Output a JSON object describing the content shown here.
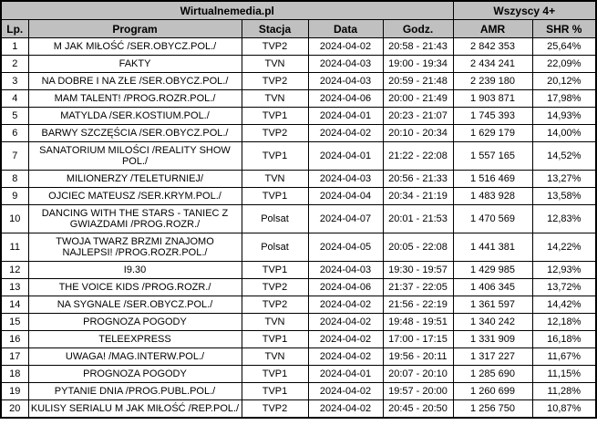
{
  "colors": {
    "header_bg": "#c0c0c0",
    "border": "#000000",
    "text": "#000000",
    "row_bg": "#ffffff"
  },
  "chart_data": {
    "type": "table",
    "title": "Wirtualnemedia.pl",
    "group_header": {
      "left": "Wirtualnemedia.pl",
      "left_span": 5,
      "right": "Wszyscy 4+",
      "right_span": 2
    },
    "columns": [
      {
        "key": "lp",
        "label": "Lp."
      },
      {
        "key": "program",
        "label": "Program"
      },
      {
        "key": "stacja",
        "label": "Stacja"
      },
      {
        "key": "data",
        "label": "Data"
      },
      {
        "key": "godz",
        "label": "Godz."
      },
      {
        "key": "amr",
        "label": "AMR"
      },
      {
        "key": "shr",
        "label": "SHR %"
      }
    ],
    "rows": [
      {
        "lp": "1",
        "program": "M JAK MIŁOŚĆ /SER.OBYCZ.POL./",
        "stacja": "TVP2",
        "data": "2024-04-02",
        "godz": "20:58 - 21:43",
        "amr": "2 842 353",
        "shr": "25,64%"
      },
      {
        "lp": "2",
        "program": "FAKTY",
        "stacja": "TVN",
        "data": "2024-04-03",
        "godz": "19:00 - 19:34",
        "amr": "2 434 241",
        "shr": "22,09%"
      },
      {
        "lp": "3",
        "program": "NA DOBRE I NA ZŁE /SER.OBYCZ.POL./",
        "stacja": "TVP2",
        "data": "2024-04-03",
        "godz": "20:59 - 21:48",
        "amr": "2 239 180",
        "shr": "20,12%"
      },
      {
        "lp": "4",
        "program": "MAM TALENT! /PROG.ROZR.POL./",
        "stacja": "TVN",
        "data": "2024-04-06",
        "godz": "20:00 - 21:49",
        "amr": "1 903 871",
        "shr": "17,98%"
      },
      {
        "lp": "5",
        "program": "MATYLDA /SER.KOSTIUM.POL./",
        "stacja": "TVP1",
        "data": "2024-04-01",
        "godz": "20:23 - 21:07",
        "amr": "1 745 393",
        "shr": "14,93%"
      },
      {
        "lp": "6",
        "program": "BARWY SZCZĘŚCIA /SER.OBYCZ.POL./",
        "stacja": "TVP2",
        "data": "2024-04-02",
        "godz": "20:10 - 20:34",
        "amr": "1 629 179",
        "shr": "14,00%"
      },
      {
        "lp": "7",
        "program": "SANATORIUM MILOŚCI /REALITY SHOW POL./",
        "stacja": "TVP1",
        "data": "2024-04-01",
        "godz": "21:22 - 22:08",
        "amr": "1 557 165",
        "shr": "14,52%"
      },
      {
        "lp": "8",
        "program": "MILIONERZY /TELETURNIEJ/",
        "stacja": "TVN",
        "data": "2024-04-03",
        "godz": "20:56 - 21:33",
        "amr": "1 516 469",
        "shr": "13,27%"
      },
      {
        "lp": "9",
        "program": "OJCIEC MATEUSZ /SER.KRYM.POL./",
        "stacja": "TVP1",
        "data": "2024-04-04",
        "godz": "20:34 - 21:19",
        "amr": "1 483 928",
        "shr": "13,58%"
      },
      {
        "lp": "10",
        "program": "DANCING WITH THE STARS - TANIEC Z GWIAZDAMI /PROG.ROZR./",
        "stacja": "Polsat",
        "data": "2024-04-07",
        "godz": "20:01 - 21:53",
        "amr": "1 470 569",
        "shr": "12,83%"
      },
      {
        "lp": "11",
        "program": "TWOJA TWARZ BRZMI ZNAJOMO NAJLEPSI! /PROG.ROZR.POL./",
        "stacja": "Polsat",
        "data": "2024-04-05",
        "godz": "20:05 - 22:08",
        "amr": "1 441 381",
        "shr": "14,22%"
      },
      {
        "lp": "12",
        "program": "I9.30",
        "stacja": "TVP1",
        "data": "2024-04-03",
        "godz": "19:30 - 19:57",
        "amr": "1 429 985",
        "shr": "12,93%"
      },
      {
        "lp": "13",
        "program": "THE VOICE KIDS /PROG.ROZR./",
        "stacja": "TVP2",
        "data": "2024-04-06",
        "godz": "21:37 - 22:05",
        "amr": "1 406 345",
        "shr": "13,72%"
      },
      {
        "lp": "14",
        "program": "NA SYGNALE /SER.OBYCZ.POL./",
        "stacja": "TVP2",
        "data": "2024-04-02",
        "godz": "21:56 - 22:19",
        "amr": "1 361 597",
        "shr": "14,42%"
      },
      {
        "lp": "15",
        "program": "PROGNOZA POGODY",
        "stacja": "TVN",
        "data": "2024-04-02",
        "godz": "19:48 - 19:51",
        "amr": "1 340 242",
        "shr": "12,18%"
      },
      {
        "lp": "16",
        "program": "TELEEXPRESS",
        "stacja": "TVP1",
        "data": "2024-04-02",
        "godz": "17:00 - 17:15",
        "amr": "1 331 909",
        "shr": "16,18%"
      },
      {
        "lp": "17",
        "program": "UWAGA! /MAG.INTERW.POL./",
        "stacja": "TVN",
        "data": "2024-04-02",
        "godz": "19:56 - 20:11",
        "amr": "1 317 227",
        "shr": "11,67%"
      },
      {
        "lp": "18",
        "program": "PROGNOZA POGODY",
        "stacja": "TVP1",
        "data": "2024-04-01",
        "godz": "20:07 - 20:10",
        "amr": "1 285 690",
        "shr": "11,15%"
      },
      {
        "lp": "19",
        "program": "PYTANIE DNIA /PROG.PUBL.POL./",
        "stacja": "TVP1",
        "data": "2024-04-02",
        "godz": "19:57 - 20:00",
        "amr": "1 260 699",
        "shr": "11,28%"
      },
      {
        "lp": "20",
        "program": "KULISY SERIALU M JAK MIŁOŚĆ /REP.POL./",
        "stacja": "TVP2",
        "data": "2024-04-02",
        "godz": "20:45 - 20:50",
        "amr": "1 256 750",
        "shr": "10,87%"
      }
    ]
  }
}
